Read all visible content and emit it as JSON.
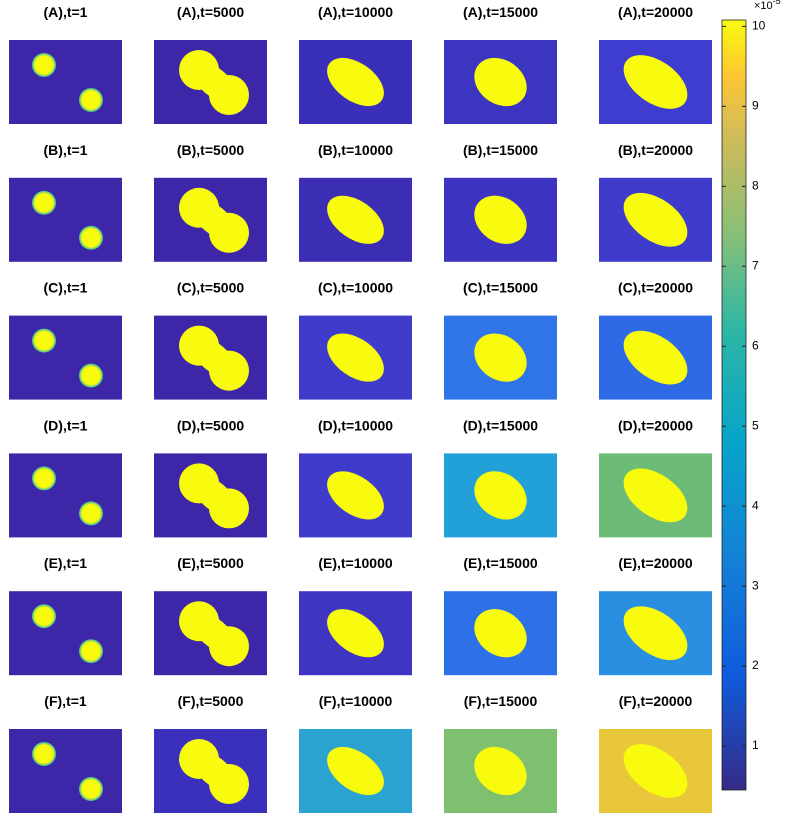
{
  "panels": [
    [
      "(A),t=1",
      "(A),t=5000",
      "(A),t=10000",
      "(A),t=15000",
      "(A),t=20000"
    ],
    [
      "(B),t=1",
      "(B),t=5000",
      "(B),t=10000",
      "(B),t=15000",
      "(B),t=20000"
    ],
    [
      "(C),t=1",
      "(C),t=5000",
      "(C),t=10000",
      "(C),t=15000",
      "(C),t=20000"
    ],
    [
      "(D),t=1",
      "(D),t=5000",
      "(D),t=10000",
      "(D),t=15000",
      "(D),t=20000"
    ],
    [
      "(E),t=1",
      "(E),t=5000",
      "(E),t=10000",
      "(E),t=15000",
      "(E),t=20000"
    ],
    [
      "(F),t=1",
      "(F),t=5000",
      "(F),t=10000",
      "(F),t=15000",
      "(F),t=20000"
    ]
  ],
  "colorbar": {
    "clim": [
      0.45,
      10.08
    ],
    "ticks": [
      1,
      2,
      3,
      4,
      5,
      6,
      7,
      8,
      9,
      10
    ],
    "exponent": {
      "base": "×10",
      "power": "-5"
    }
  }
}
